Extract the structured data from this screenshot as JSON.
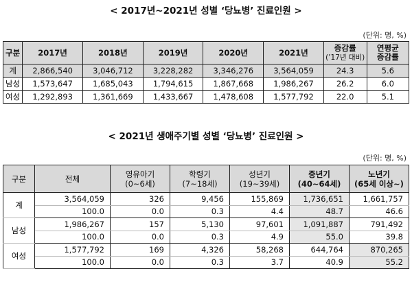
{
  "title1": "< 2017년~2021년 성별 ‘당뇨병’ 진료인원 >",
  "unit1": "(단위: 명, %)",
  "table1": {
    "h_category": "구분",
    "years": [
      "2017년",
      "2018년",
      "2019년",
      "2020년",
      "2021년"
    ],
    "h_rate_line1": "증감률",
    "h_rate_line2": "(’17년 대비)",
    "h_avg_line1": "연평균",
    "h_avg_line2": "증감률",
    "rows": [
      {
        "label": "계",
        "values": [
          "2,866,540",
          "3,046,712",
          "3,228,282",
          "3,346,276",
          "3,564,059"
        ],
        "rate": "24.3",
        "avg": "5.6"
      },
      {
        "label": "남성",
        "values": [
          "1,573,647",
          "1,685,043",
          "1,794,615",
          "1,867,668",
          "1,986,267"
        ],
        "rate": "26.2",
        "avg": "6.0"
      },
      {
        "label": "여성",
        "values": [
          "1,292,893",
          "1,361,669",
          "1,433,667",
          "1,478,608",
          "1,577,792"
        ],
        "rate": "22.0",
        "avg": "5.1"
      }
    ]
  },
  "title2": "< 2021년 생애주기별 성별 ‘당뇨병’ 진료인원 >",
  "unit2": "(단위: 명, %)",
  "table2": {
    "h_category": "구분",
    "h_total": "전체",
    "groups": [
      {
        "name": "영유아기",
        "range": "(0~6세)"
      },
      {
        "name": "학령기",
        "range": "(7~18세)"
      },
      {
        "name": "성년기",
        "range": "(19~39세)"
      },
      {
        "name": "중년기",
        "range": "(40~64세)"
      },
      {
        "name": "노년기",
        "range": "(65세 이상~)"
      }
    ],
    "rows": [
      {
        "label": "계",
        "counts": [
          "3,564,059",
          "326",
          "9,456",
          "155,869",
          "1,736,651",
          "1,661,757"
        ],
        "pcts": [
          "100.0",
          "0.0",
          "0.3",
          "4.4",
          "48.7",
          "46.6"
        ]
      },
      {
        "label": "남성",
        "counts": [
          "1,986,267",
          "157",
          "5,130",
          "97,601",
          "1,091,887",
          "791,492"
        ],
        "pcts": [
          "100.0",
          "0.0",
          "0.3",
          "4.9",
          "55.0",
          "39.8"
        ]
      },
      {
        "label": "여성",
        "counts": [
          "1,577,792",
          "169",
          "4,326",
          "58,268",
          "644,764",
          "870,265"
        ],
        "pcts": [
          "100.0",
          "0.0",
          "0.3",
          "3.7",
          "40.9",
          "55.2"
        ]
      }
    ]
  }
}
